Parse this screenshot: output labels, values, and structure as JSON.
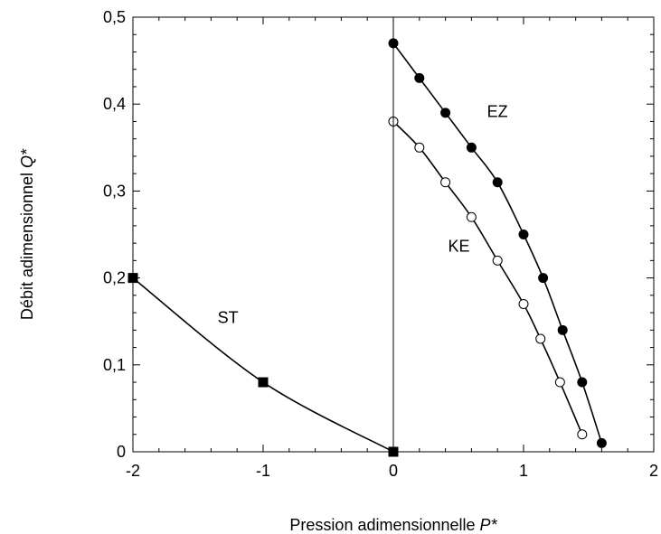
{
  "chart_data": {
    "type": "scatter",
    "xlabel": "Pression adimensionnelle",
    "xlabel_var": "P*",
    "ylabel": "Débit adimensionnel",
    "ylabel_var": "Q*",
    "xlim": [
      -2,
      2
    ],
    "ylim": [
      0,
      0.5
    ],
    "xticks": [
      -2,
      -1,
      0,
      1,
      2
    ],
    "xtick_labels": [
      "-2",
      "-1",
      "0",
      "1",
      "2"
    ],
    "yticks": [
      0,
      0.1,
      0.2,
      0.3,
      0.4,
      0.5
    ],
    "ytick_labels": [
      "0",
      "0,1",
      "0,2",
      "0,3",
      "0,4",
      "0,5"
    ],
    "grid": false,
    "vertical_line_x": 0,
    "series": [
      {
        "name": "EZ",
        "marker": "filled-circle",
        "color": "#000000",
        "label_at": [
          0.72,
          0.385
        ],
        "x": [
          0,
          0.2,
          0.4,
          0.6,
          0.8,
          1.0,
          1.15,
          1.3,
          1.45,
          1.6
        ],
        "y": [
          0.47,
          0.43,
          0.39,
          0.35,
          0.31,
          0.25,
          0.2,
          0.14,
          0.08,
          0.01
        ]
      },
      {
        "name": "KE",
        "marker": "open-circle",
        "color": "#000000",
        "label_at": [
          0.42,
          0.23
        ],
        "x": [
          0,
          0.2,
          0.4,
          0.6,
          0.8,
          1.0,
          1.13,
          1.28,
          1.45
        ],
        "y": [
          0.38,
          0.35,
          0.31,
          0.27,
          0.22,
          0.17,
          0.13,
          0.08,
          0.02
        ]
      },
      {
        "name": "ST",
        "marker": "filled-square",
        "color": "#000000",
        "label_at": [
          -1.35,
          0.148
        ],
        "x": [
          -2,
          -1,
          0
        ],
        "y": [
          0.2,
          0.08,
          0.0
        ]
      }
    ]
  }
}
